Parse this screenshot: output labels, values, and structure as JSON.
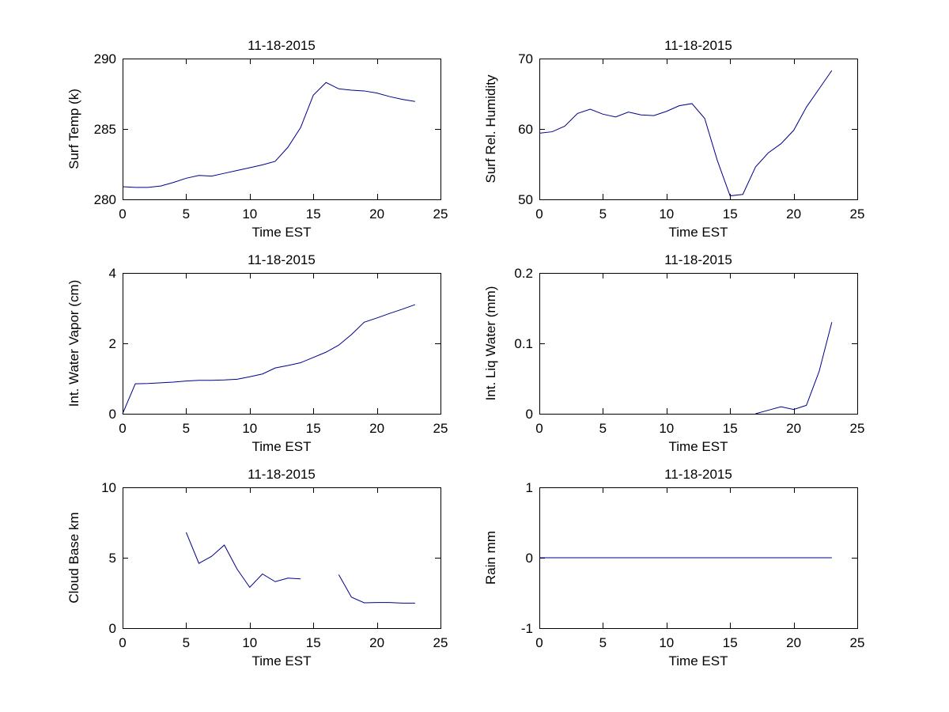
{
  "figure": {
    "background_color": "#FFFFFF",
    "axis_color": "#000000",
    "line_color": "#00008B",
    "date_title": "11-18-2015"
  },
  "chart_data": [
    {
      "id": "surf-temp",
      "type": "line",
      "title": "11-18-2015",
      "xlabel": "Time EST",
      "ylabel": "Surf Temp (k)",
      "xlim": [
        0,
        25
      ],
      "ylim": [
        280,
        290
      ],
      "xticks": [
        0,
        5,
        10,
        15,
        20,
        25
      ],
      "yticks": [
        280,
        285,
        290
      ],
      "grid": false,
      "series": [
        {
          "name": "Surf Temp (k)",
          "segments": [
            {
              "x": [
                0,
                1,
                2,
                3,
                4,
                5,
                6,
                7,
                8,
                9,
                10,
                11,
                12,
                13,
                14,
                15,
                16,
                17,
                18,
                19,
                20,
                21,
                22,
                23
              ],
              "y": [
                280.9,
                280.85,
                280.85,
                280.95,
                281.2,
                281.5,
                281.7,
                281.65,
                281.85,
                282.05,
                282.25,
                282.45,
                282.7,
                283.7,
                285.1,
                287.4,
                288.3,
                287.85,
                287.75,
                287.7,
                287.55,
                287.3,
                287.1,
                286.95
              ]
            }
          ]
        }
      ]
    },
    {
      "id": "surf-rel-humidity",
      "type": "line",
      "title": "11-18-2015",
      "xlabel": "Time EST",
      "ylabel": "Surf Rel. Humidity",
      "xlim": [
        0,
        25
      ],
      "ylim": [
        50,
        70
      ],
      "xticks": [
        0,
        5,
        10,
        15,
        20,
        25
      ],
      "yticks": [
        50,
        60,
        70
      ],
      "grid": false,
      "series": [
        {
          "name": "Surf Rel. Humidity",
          "segments": [
            {
              "x": [
                0,
                1,
                2,
                3,
                4,
                5,
                6,
                7,
                8,
                9,
                10,
                11,
                12,
                13,
                14,
                15,
                16,
                17,
                18,
                19,
                20,
                21,
                22,
                23
              ],
              "y": [
                59.4,
                59.6,
                60.4,
                62.2,
                62.8,
                62.1,
                61.7,
                62.4,
                62.0,
                61.9,
                62.5,
                63.3,
                63.6,
                61.5,
                55.5,
                50.5,
                50.7,
                54.6,
                56.6,
                57.9,
                59.8,
                63.1,
                65.7,
                68.3
              ]
            }
          ]
        }
      ]
    },
    {
      "id": "int-water-vapor",
      "type": "line",
      "title": "11-18-2015",
      "xlabel": "Time EST",
      "ylabel": "Int. Water Vapor (cm)",
      "xlim": [
        0,
        25
      ],
      "ylim": [
        0,
        4
      ],
      "xticks": [
        0,
        5,
        10,
        15,
        20,
        25
      ],
      "yticks": [
        0,
        2,
        4
      ],
      "grid": false,
      "series": [
        {
          "name": "Int. Water Vapor (cm)",
          "segments": [
            {
              "x": [
                0,
                1,
                2,
                3,
                4,
                5,
                6,
                7,
                8,
                9,
                10,
                11,
                12,
                13,
                14,
                15,
                16,
                17,
                18,
                19,
                20,
                21,
                22,
                23
              ],
              "y": [
                0.0,
                0.85,
                0.86,
                0.88,
                0.9,
                0.93,
                0.95,
                0.95,
                0.96,
                0.98,
                1.05,
                1.13,
                1.3,
                1.37,
                1.45,
                1.6,
                1.75,
                1.95,
                2.25,
                2.6,
                2.72,
                2.85,
                2.97,
                3.1
              ]
            }
          ]
        }
      ]
    },
    {
      "id": "int-liq-water",
      "type": "line",
      "title": "11-18-2015",
      "xlabel": "Time EST",
      "ylabel": "Int. Liq Water (mm)",
      "xlim": [
        0,
        25
      ],
      "ylim": [
        0,
        0.2
      ],
      "xticks": [
        0,
        5,
        10,
        15,
        20,
        25
      ],
      "yticks": [
        0,
        0.1,
        0.2
      ],
      "grid": false,
      "series": [
        {
          "name": "Int. Liq Water (mm)",
          "segments": [
            {
              "x": [
                17,
                18,
                19,
                20,
                21,
                22,
                23
              ],
              "y": [
                0.0,
                0.005,
                0.01,
                0.006,
                0.012,
                0.06,
                0.13
              ]
            }
          ]
        }
      ]
    },
    {
      "id": "cloud-base",
      "type": "line",
      "title": "11-18-2015",
      "xlabel": "Time EST",
      "ylabel": "Cloud Base km",
      "xlim": [
        0,
        25
      ],
      "ylim": [
        0,
        10
      ],
      "xticks": [
        0,
        5,
        10,
        15,
        20,
        25
      ],
      "yticks": [
        0,
        5,
        10
      ],
      "grid": false,
      "series": [
        {
          "name": "Cloud Base km",
          "segments": [
            {
              "x": [
                5,
                6,
                7,
                8,
                9,
                10,
                11,
                12,
                13,
                14
              ],
              "y": [
                6.8,
                4.6,
                5.1,
                5.9,
                4.2,
                2.9,
                3.85,
                3.3,
                3.55,
                3.5
              ]
            },
            {
              "x": [
                17,
                18,
                19,
                20,
                21,
                22,
                23
              ],
              "y": [
                3.8,
                2.2,
                1.8,
                1.82,
                1.82,
                1.78,
                1.78
              ]
            }
          ]
        }
      ]
    },
    {
      "id": "rain",
      "type": "line",
      "title": "11-18-2015",
      "xlabel": "Time EST",
      "ylabel": "Rain mm",
      "xlim": [
        0,
        25
      ],
      "ylim": [
        -1,
        1
      ],
      "xticks": [
        0,
        5,
        10,
        15,
        20,
        25
      ],
      "yticks": [
        -1,
        0,
        1
      ],
      "grid": false,
      "series": [
        {
          "name": "Rain mm",
          "segments": [
            {
              "x": [
                0,
                1,
                2,
                3,
                4,
                5,
                6,
                7,
                8,
                9,
                10,
                11,
                12,
                13,
                14,
                15,
                16,
                17,
                18,
                19,
                20,
                21,
                22,
                23
              ],
              "y": [
                0,
                0,
                0,
                0,
                0,
                0,
                0,
                0,
                0,
                0,
                0,
                0,
                0,
                0,
                0,
                0,
                0,
                0,
                0,
                0,
                0,
                0,
                0,
                0
              ]
            }
          ]
        }
      ]
    }
  ]
}
